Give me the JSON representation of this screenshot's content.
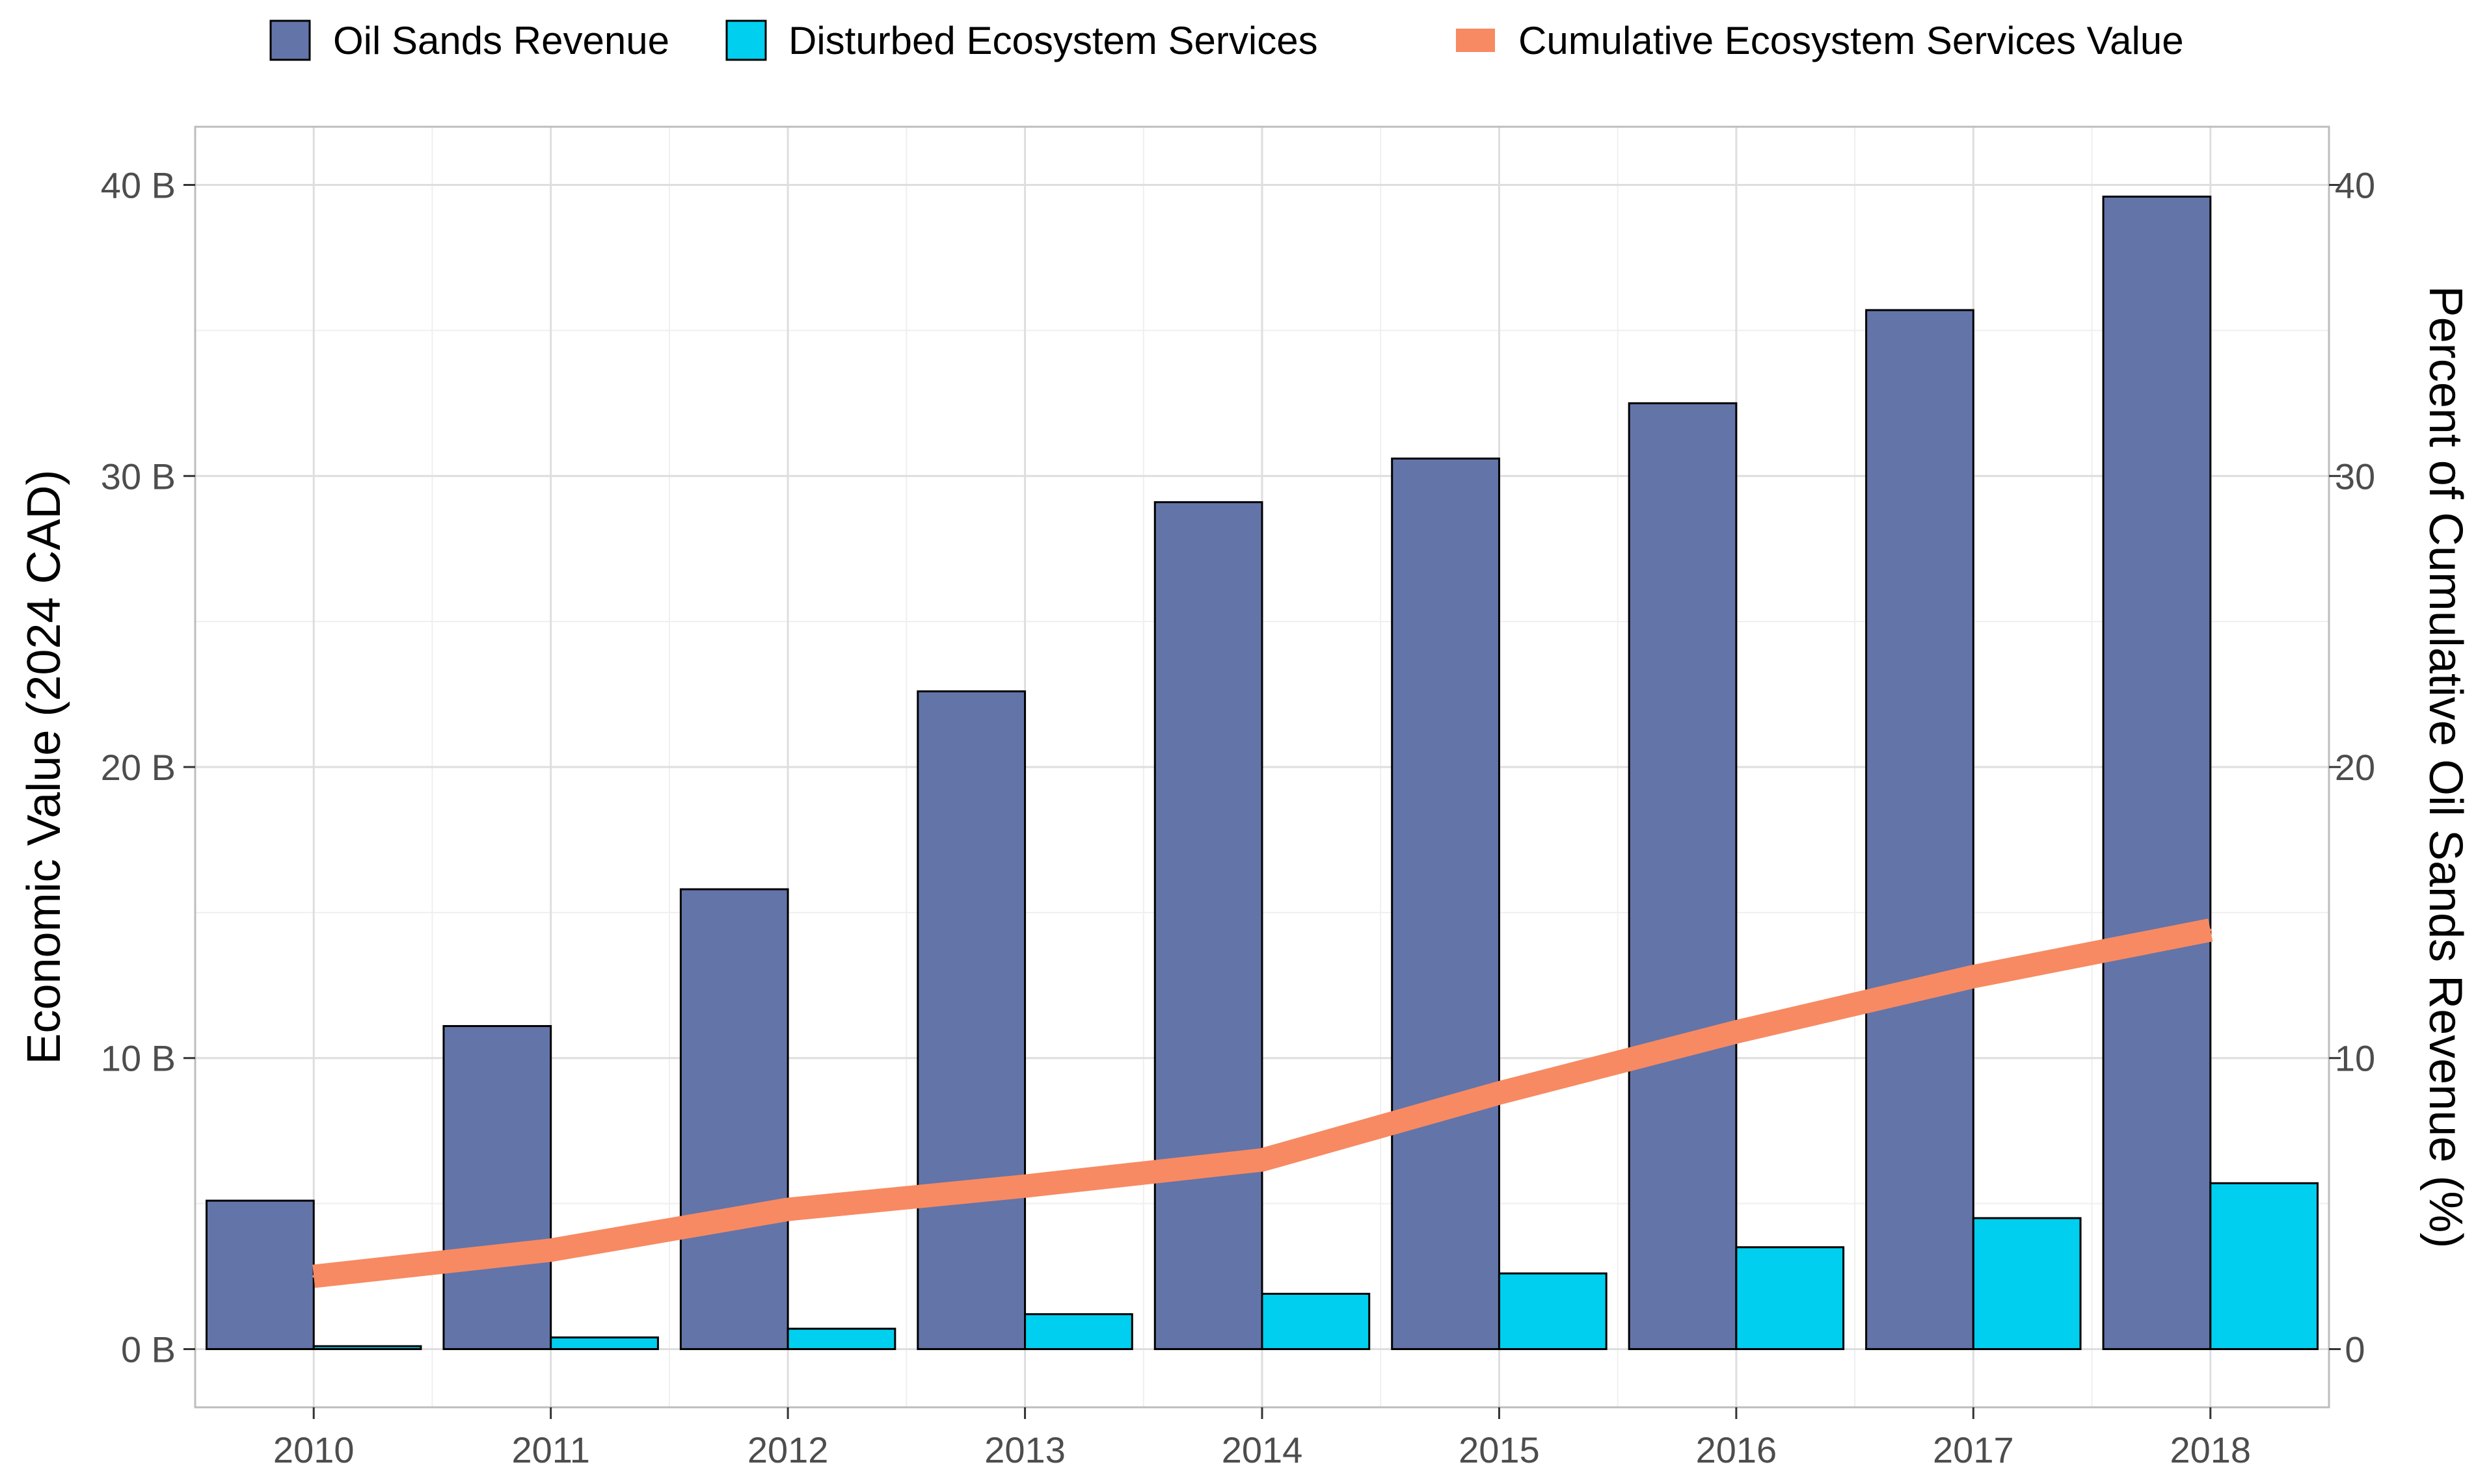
{
  "chart_data": {
    "type": "bar",
    "title": "",
    "categories": [
      "2010",
      "2011",
      "2012",
      "2013",
      "2014",
      "2015",
      "2016",
      "2017",
      "2018"
    ],
    "series": [
      {
        "name": "Oil Sands Revenue",
        "kind": "bar",
        "axis": "left",
        "color": "#6374a8",
        "values": [
          5.1,
          11.1,
          15.8,
          22.6,
          29.1,
          30.6,
          32.5,
          35.7,
          39.6
        ]
      },
      {
        "name": "Disturbed Ecosystem Services",
        "kind": "bar",
        "axis": "left",
        "color": "#00cfef",
        "values": [
          0.1,
          0.4,
          0.7,
          1.2,
          1.9,
          2.6,
          3.5,
          4.5,
          5.7
        ]
      },
      {
        "name": "Cumulative Ecosystem Services Value",
        "kind": "line",
        "axis": "right",
        "color": "#f78a62",
        "values": [
          2.5,
          3.4,
          4.8,
          5.6,
          6.5,
          8.8,
          10.9,
          12.8,
          14.4
        ]
      }
    ],
    "ylabel": "Economic Value (2024 CAD)",
    "y2label": "Percent of Cumulative Oil Sands Revenue (%)",
    "xlabel": "",
    "ylim": [
      -2,
      42
    ],
    "y2lim": [
      -2,
      42
    ],
    "yticks": [
      {
        "value": 0,
        "label": "0 B"
      },
      {
        "value": 10,
        "label": "10 B"
      },
      {
        "value": 20,
        "label": "20 B"
      },
      {
        "value": 30,
        "label": "30 B"
      },
      {
        "value": 40,
        "label": "40 B"
      }
    ],
    "y2ticks": [
      {
        "value": 0,
        "label": "0"
      },
      {
        "value": 10,
        "label": "10"
      },
      {
        "value": 20,
        "label": "20"
      },
      {
        "value": 30,
        "label": "30"
      },
      {
        "value": 40,
        "label": "40"
      }
    ],
    "legend_position": "top",
    "grid": true,
    "frame_color": "#bdbdbd"
  }
}
